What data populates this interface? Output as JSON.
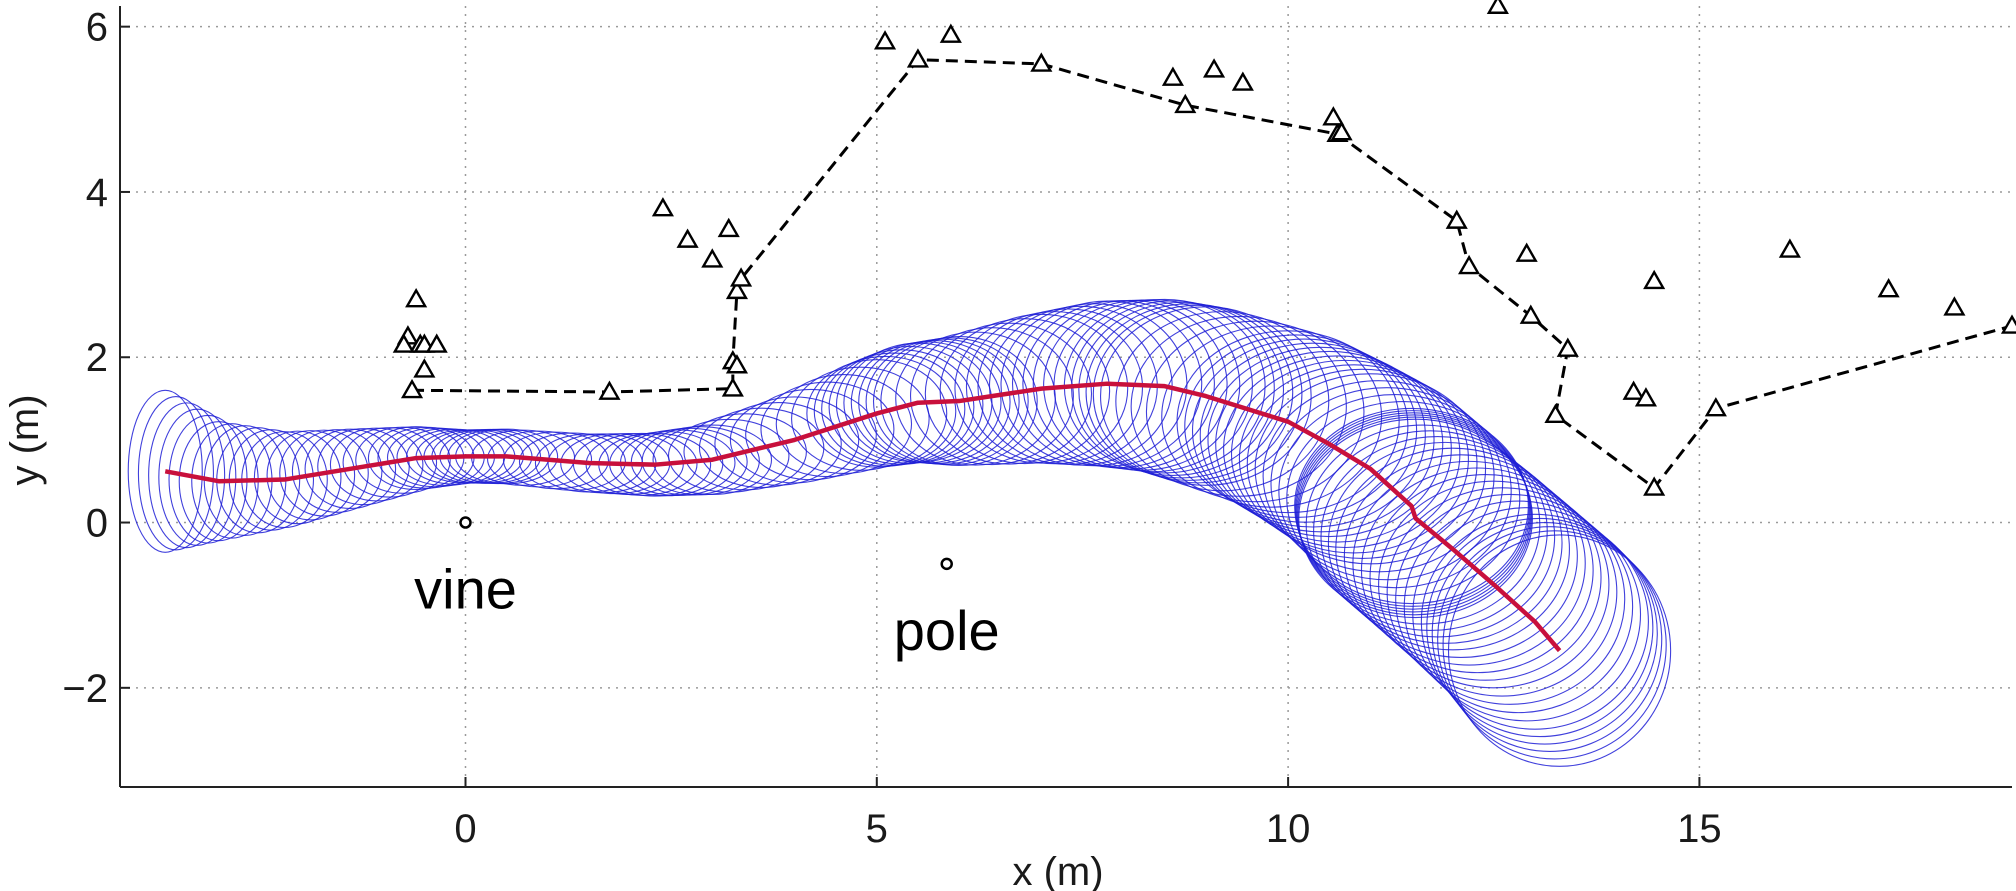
{
  "chart_data": {
    "type": "scatter",
    "title": "",
    "xlabel": "x (m)",
    "ylabel": "y (m)",
    "xlim": [
      -4.2,
      18.8
    ],
    "ylim": [
      -3.2,
      6.25
    ],
    "xticks": [
      0,
      5,
      10,
      15
    ],
    "yticks": [
      6,
      4,
      2,
      0,
      -2
    ],
    "xtick_labels": [
      "0",
      "5",
      "10",
      "15"
    ],
    "ytick_labels": [
      "6",
      "4",
      "2",
      "0",
      "−2"
    ],
    "grid": true,
    "colors": {
      "ellipses": "#1f1fd6",
      "trajectory": "#c8103c",
      "path": "#000000",
      "markers": "#000000"
    },
    "series": [
      {
        "type": "line-triangle",
        "x": [
          -0.65,
          1.75,
          3.25,
          3.25,
          3.3,
          3.35,
          5.5,
          7.0,
          8.75,
          10.6,
          12.05,
          12.2,
          12.95,
          13.4,
          13.25,
          14.45,
          15.2,
          18.8
        ],
        "y": [
          1.6,
          1.58,
          1.62,
          1.95,
          2.8,
          2.95,
          5.6,
          5.55,
          5.05,
          4.7,
          3.65,
          3.1,
          2.5,
          2.1,
          1.3,
          0.42,
          1.38,
          2.38
        ]
      },
      {
        "type": "triangle",
        "x": [
          -0.6,
          -0.7,
          -0.55,
          -0.75,
          -0.5,
          -0.5,
          -0.35,
          2.4,
          2.7,
          3.0,
          3.2,
          3.3,
          5.1,
          5.9,
          8.6,
          9.1,
          9.45,
          10.55,
          10.65,
          12.55,
          12.9,
          14.2,
          14.35,
          14.45,
          16.1,
          17.3,
          18.1
        ],
        "y": [
          2.7,
          2.25,
          2.15,
          2.15,
          2.15,
          1.85,
          2.15,
          3.8,
          3.42,
          3.18,
          3.55,
          1.9,
          5.82,
          5.9,
          5.38,
          5.48,
          5.32,
          4.9,
          4.72,
          6.25,
          3.25,
          1.58,
          1.5,
          2.92,
          3.3,
          2.82,
          2.6
        ]
      },
      {
        "type": "line",
        "x": [
          -3.65,
          -3.0,
          -2.2,
          -1.4,
          -0.6,
          0.0,
          0.5,
          1.5,
          2.3,
          3.0,
          4.0,
          5.0,
          5.5,
          6.0,
          7.0,
          7.8,
          8.5,
          9.0,
          10.0,
          10.5,
          11.0,
          11.5,
          11.55,
          12.0,
          12.5,
          13.0,
          13.3
        ],
        "y": [
          0.62,
          0.5,
          0.52,
          0.65,
          0.78,
          0.8,
          0.8,
          0.72,
          0.7,
          0.76,
          1.0,
          1.32,
          1.45,
          1.47,
          1.62,
          1.68,
          1.65,
          1.53,
          1.22,
          0.95,
          0.65,
          0.2,
          0.05,
          -0.32,
          -0.75,
          -1.2,
          -1.55
        ]
      },
      {
        "type": "ellipses",
        "center_x": [
          -3.65,
          -3.0,
          -2.2,
          -1.4,
          -0.6,
          0.0,
          0.5,
          1.5,
          2.3,
          3.0,
          4.0,
          5.0,
          5.5,
          6.0,
          7.0,
          7.8,
          8.5,
          9.0,
          10.0,
          10.5,
          11.0,
          11.5,
          11.55,
          12.0,
          12.5,
          13.0,
          13.3
        ],
        "center_y": [
          0.62,
          0.5,
          0.52,
          0.65,
          0.78,
          0.8,
          0.8,
          0.72,
          0.7,
          0.76,
          1.0,
          1.32,
          1.45,
          1.47,
          1.62,
          1.68,
          1.65,
          1.53,
          1.22,
          0.95,
          0.65,
          0.2,
          0.05,
          -0.32,
          -0.75,
          -1.2,
          -1.55
        ],
        "rx": [
          0.45,
          0.48,
          0.52,
          0.55,
          0.58,
          0.6,
          0.62,
          0.65,
          0.68,
          0.72,
          0.78,
          0.85,
          0.9,
          0.95,
          1.05,
          1.15,
          1.22,
          1.28,
          1.35,
          1.38,
          1.4,
          1.42,
          1.42,
          1.42,
          1.4,
          1.38,
          1.35
        ],
        "ry": [
          0.98,
          0.72,
          0.58,
          0.48,
          0.38,
          0.32,
          0.33,
          0.35,
          0.38,
          0.42,
          0.52,
          0.65,
          0.72,
          0.78,
          0.9,
          1.0,
          1.05,
          1.08,
          1.1,
          1.12,
          1.15,
          1.18,
          1.2,
          1.22,
          1.25,
          1.3,
          1.4
        ]
      }
    ],
    "points": [
      {
        "label": "vine",
        "x": 0.0,
        "y": 0.0
      },
      {
        "label": "pole",
        "x": 5.85,
        "y": -0.5
      }
    ]
  }
}
